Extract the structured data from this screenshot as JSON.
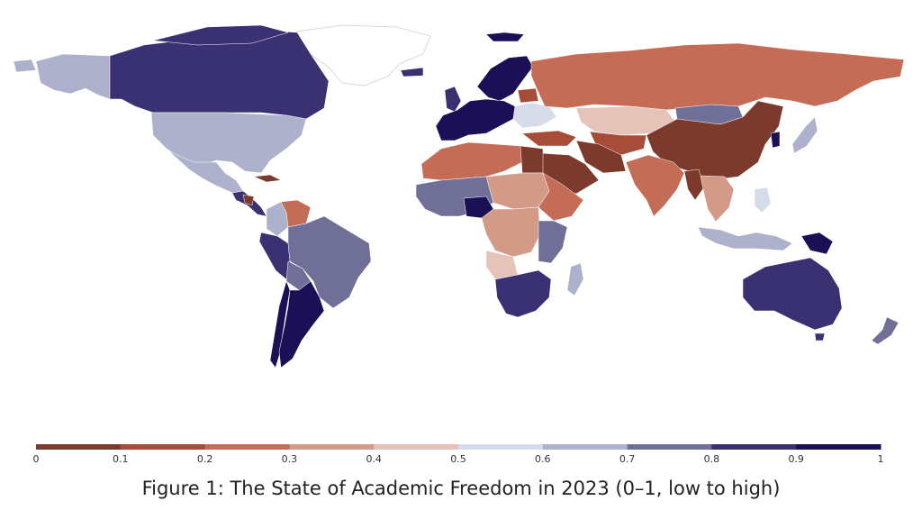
{
  "caption": "Figure 1: The State of Academic Freedom in 2023 (0–1, low to high)",
  "legend": {
    "min": 0,
    "max": 1,
    "ticks": [
      "0",
      "0.1",
      "0.2",
      "0.3",
      "0.4",
      "0.5",
      "0.6",
      "0.7",
      "0.8",
      "0.9",
      "1"
    ],
    "colors": [
      "#7b3a2c",
      "#a74c39",
      "#c56c57",
      "#d49a88",
      "#e6c3b8",
      "#d7dbe9",
      "#aeb1cc",
      "#6f6f98",
      "#3a3173",
      "#1b0f55"
    ]
  },
  "regions": [
    {
      "name": "greenland",
      "level": "no-data",
      "color": "#ffffff"
    },
    {
      "name": "alaska",
      "level": "0.6-0.7",
      "color": "#aeb1cc"
    },
    {
      "name": "canada",
      "level": "0.8-0.9",
      "color": "#3a3173"
    },
    {
      "name": "united-states",
      "level": "0.6-0.7",
      "color": "#aeb1cc"
    },
    {
      "name": "mexico",
      "level": "0.6-0.7",
      "color": "#aeb1cc"
    },
    {
      "name": "cuba",
      "level": "0-0.1",
      "color": "#7b3a2c"
    },
    {
      "name": "central-america",
      "level": "0.8-0.9",
      "color": "#3a3173"
    },
    {
      "name": "nicaragua",
      "level": "0-0.1",
      "color": "#7b3a2c"
    },
    {
      "name": "venezuela",
      "level": "0.2-0.3",
      "color": "#c56c57"
    },
    {
      "name": "colombia",
      "level": "0.6-0.7",
      "color": "#aeb1cc"
    },
    {
      "name": "brazil",
      "level": "0.7-0.8",
      "color": "#6f6f98"
    },
    {
      "name": "peru-ecuador",
      "level": "0.8-0.9",
      "color": "#3a3173"
    },
    {
      "name": "bolivia",
      "level": "0.7-0.8",
      "color": "#6f6f98"
    },
    {
      "name": "chile",
      "level": "0.9-1",
      "color": "#1b0f55"
    },
    {
      "name": "argentina",
      "level": "0.9-1",
      "color": "#1b0f55"
    },
    {
      "name": "western-europe",
      "level": "0.9-1",
      "color": "#1b0f55"
    },
    {
      "name": "uk",
      "level": "0.8-0.9",
      "color": "#3a3173"
    },
    {
      "name": "scandinavia",
      "level": "0.9-1",
      "color": "#1b0f55"
    },
    {
      "name": "iceland",
      "level": "0.8-0.9",
      "color": "#3a3173"
    },
    {
      "name": "eastern-europe",
      "level": "0.5-0.6",
      "color": "#d7dbe9"
    },
    {
      "name": "belarus",
      "level": "0.1-0.2",
      "color": "#a74c39"
    },
    {
      "name": "russia",
      "level": "0.2-0.3",
      "color": "#c56c57"
    },
    {
      "name": "kazakhstan",
      "level": "0.4-0.5",
      "color": "#e6c3b8"
    },
    {
      "name": "mongolia",
      "level": "0.7-0.8",
      "color": "#6f6f98"
    },
    {
      "name": "china",
      "level": "0-0.1",
      "color": "#7b3a2c"
    },
    {
      "name": "central-asia",
      "level": "0.1-0.2",
      "color": "#a74c39"
    },
    {
      "name": "turkey",
      "level": "0.1-0.2",
      "color": "#a74c39"
    },
    {
      "name": "iran",
      "level": "0-0.1",
      "color": "#7b3a2c"
    },
    {
      "name": "saudi-arabia",
      "level": "0-0.1",
      "color": "#7b3a2c"
    },
    {
      "name": "india",
      "level": "0.2-0.3",
      "color": "#c56c57"
    },
    {
      "name": "myanmar",
      "level": "0-0.1",
      "color": "#7b3a2c"
    },
    {
      "name": "southeast-asia",
      "level": "0.3-0.4",
      "color": "#d49a88"
    },
    {
      "name": "japan",
      "level": "0.6-0.7",
      "color": "#aeb1cc"
    },
    {
      "name": "korea",
      "level": "0.9-1",
      "color": "#1b0f55"
    },
    {
      "name": "indonesia",
      "level": "0.6-0.7",
      "color": "#aeb1cc"
    },
    {
      "name": "philippines",
      "level": "0.5-0.6",
      "color": "#d7dbe9"
    },
    {
      "name": "papua-new-guinea",
      "level": "0.9-1",
      "color": "#1b0f55"
    },
    {
      "name": "australia",
      "level": "0.8-0.9",
      "color": "#3a3173"
    },
    {
      "name": "new-zealand",
      "level": "0.7-0.8",
      "color": "#6f6f98"
    },
    {
      "name": "north-africa",
      "level": "0.2-0.3",
      "color": "#c56c57"
    },
    {
      "name": "egypt",
      "level": "0-0.1",
      "color": "#7b3a2c"
    },
    {
      "name": "sudan-chad",
      "level": "0.3-0.4",
      "color": "#d49a88"
    },
    {
      "name": "west-africa",
      "level": "0.7-0.8",
      "color": "#6f6f98"
    },
    {
      "name": "nigeria",
      "level": "0.9-1",
      "color": "#1b0f55"
    },
    {
      "name": "central-africa",
      "level": "0.3-0.4",
      "color": "#d49a88"
    },
    {
      "name": "east-africa",
      "level": "0.2-0.3",
      "color": "#c56c57"
    },
    {
      "name": "kenya-tanzania",
      "level": "0.7-0.8",
      "color": "#6f6f98"
    },
    {
      "name": "angola",
      "level": "0.4-0.5",
      "color": "#e6c3b8"
    },
    {
      "name": "southern-africa",
      "level": "0.8-0.9",
      "color": "#3a3173"
    },
    {
      "name": "madagascar",
      "level": "0.6-0.7",
      "color": "#aeb1cc"
    }
  ]
}
